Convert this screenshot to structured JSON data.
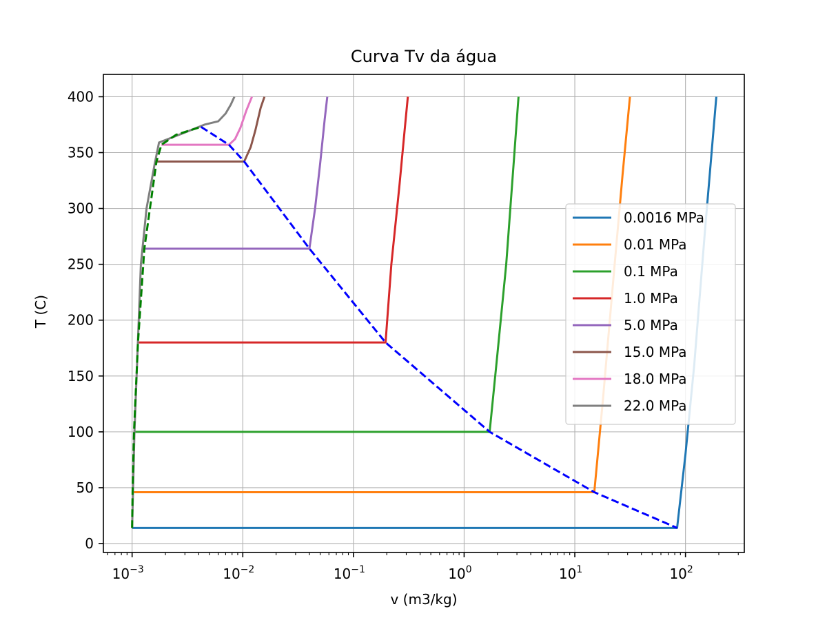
{
  "chart_data": {
    "type": "line",
    "title": "Curva Tv da água",
    "xlabel": "v (m3/kg)",
    "ylabel": "T  (C)",
    "xscale": "log",
    "xlim": [
      0.00055,
      340
    ],
    "ylim": [
      -8,
      420
    ],
    "grid": true,
    "legend_position": "center-right",
    "x_ticks": [
      {
        "value": 0.001,
        "base": "10",
        "exp": "−3"
      },
      {
        "value": 0.01,
        "base": "10",
        "exp": "−2"
      },
      {
        "value": 0.1,
        "base": "10",
        "exp": "−1"
      },
      {
        "value": 1,
        "base": "10",
        "exp": "0"
      },
      {
        "value": 10,
        "base": "10",
        "exp": "1"
      },
      {
        "value": 100,
        "base": "10",
        "exp": "2"
      }
    ],
    "y_ticks": [
      "0",
      "50",
      "100",
      "150",
      "200",
      "250",
      "300",
      "350",
      "400"
    ],
    "series": [
      {
        "name": "0.0016 MPa",
        "color": "#1f77b4",
        "x": [
          0.001001,
          84,
          100,
          120,
          150,
          190
        ],
        "y": [
          14,
          14,
          80,
          160,
          280,
          400
        ]
      },
      {
        "name": "0.01 MPa",
        "color": "#ff7f0e",
        "x": [
          0.00101,
          15,
          18,
          22,
          27,
          31.5
        ],
        "y": [
          46,
          46,
          130,
          230,
          330,
          400
        ]
      },
      {
        "name": "0.1 MPa",
        "color": "#2ca02c",
        "x": [
          0.001043,
          1.7,
          2.0,
          2.4,
          2.8,
          3.1
        ],
        "y": [
          100,
          100,
          170,
          250,
          340,
          400
        ]
      },
      {
        "name": "1.0 MPa",
        "color": "#d62728",
        "x": [
          0.001127,
          0.195,
          0.22,
          0.26,
          0.29,
          0.31
        ],
        "y": [
          180,
          180,
          250,
          320,
          370,
          400
        ]
      },
      {
        "name": "5.0 MPa",
        "color": "#9467bd",
        "x": [
          0.001286,
          0.04,
          0.045,
          0.05,
          0.055,
          0.058
        ],
        "y": [
          264,
          264,
          300,
          340,
          380,
          400
        ]
      },
      {
        "name": "15.0 MPa",
        "color": "#8c564b",
        "x": [
          0.00166,
          0.0103,
          0.0118,
          0.013,
          0.0145,
          0.0157
        ],
        "y": [
          342,
          342,
          355,
          370,
          390,
          400
        ]
      },
      {
        "name": "18.0 MPa",
        "color": "#e377c2",
        "x": [
          0.00184,
          0.0075,
          0.0085,
          0.0095,
          0.0108,
          0.0121
        ],
        "y": [
          357,
          357,
          362,
          372,
          388,
          400
        ]
      },
      {
        "name": "22.0 MPa",
        "color": "#7f7f7f",
        "x": [
          0.001,
          0.00105,
          0.0012,
          0.00135,
          0.0016,
          0.00175,
          0.003,
          0.0045,
          0.006,
          0.007,
          0.0078,
          0.0084
        ],
        "y": [
          14,
          100,
          250,
          300,
          340,
          359,
          368,
          375,
          378,
          385,
          393,
          400
        ]
      }
    ],
    "saturation_liquid": {
      "color": "#008000",
      "dash": "dashed",
      "x": [
        0.001,
        0.00101,
        0.00104,
        0.00113,
        0.00129,
        0.00166,
        0.00184,
        0.0025,
        0.0042
      ],
      "y": [
        14,
        46,
        100,
        180,
        264,
        342,
        357,
        366,
        373
      ]
    },
    "saturation_vapor": {
      "color": "#0000ff",
      "dash": "dashed",
      "x": [
        0.0042,
        0.0075,
        0.0103,
        0.04,
        0.195,
        1.7,
        15,
        84
      ],
      "y": [
        373,
        357,
        342,
        264,
        180,
        100,
        46,
        14
      ]
    }
  }
}
